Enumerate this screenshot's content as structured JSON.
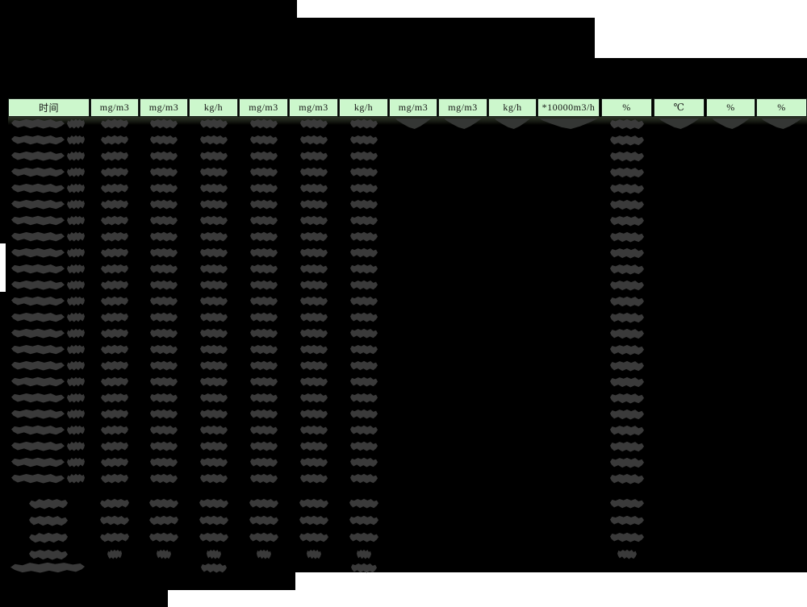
{
  "table": {
    "columns": [
      {
        "label": "时间"
      },
      {
        "label": "mg/m3"
      },
      {
        "label": "mg/m3"
      },
      {
        "label": "kg/h"
      },
      {
        "label": "mg/m3"
      },
      {
        "label": "mg/m3"
      },
      {
        "label": "kg/h"
      },
      {
        "label": "mg/m3"
      },
      {
        "label": "mg/m3"
      },
      {
        "label": "kg/h"
      },
      {
        "label": "*10000m3/h"
      },
      {
        "label": "%"
      },
      {
        "label": "℃"
      },
      {
        "label": "%"
      },
      {
        "label": "%"
      }
    ],
    "redacted_data_rows": 23,
    "redacted_summary_rows": 4,
    "redacted_footnote_row": 1,
    "fully_filled_first_row": true,
    "columns_with_data_all_rows": [
      0,
      1,
      2,
      3,
      4,
      5,
      6,
      11
    ],
    "columns_with_data_first_row_only": [
      7,
      8,
      9,
      10,
      12,
      13,
      14
    ]
  },
  "colors": {
    "background": "#000000",
    "header_fill": "#ccf7cc",
    "header_text": "#141414",
    "redaction_blob": "#3a3a3a",
    "margin_white": "#ffffff"
  }
}
